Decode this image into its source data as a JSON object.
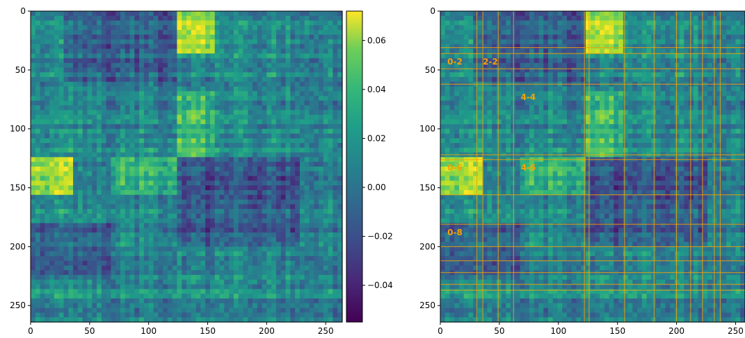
{
  "chart_data": [
    {
      "type": "heatmap",
      "title": "",
      "xlabel": "",
      "ylabel": "",
      "xlim": [
        0,
        264
      ],
      "ylim": [
        264,
        0
      ],
      "x_ticks": [
        "0",
        "50",
        "100",
        "150",
        "200",
        "250"
      ],
      "y_ticks": [
        "0",
        "50",
        "100",
        "150",
        "200",
        "250"
      ],
      "colormap": "viridis",
      "colorbar": {
        "range": [
          -0.055,
          0.072
        ],
        "ticks": [
          "0.06",
          "0.04",
          "0.02",
          "0.00",
          "−0.02",
          "−0.04"
        ]
      },
      "blocks": [
        {
          "rows": [
            0,
            36
          ],
          "cols": [
            126,
            156
          ],
          "value": 0.055
        },
        {
          "rows": [
            126,
            156
          ],
          "cols": [
            0,
            36
          ],
          "value": 0.055
        },
        {
          "rows": [
            126,
            156
          ],
          "cols": [
            70,
            126
          ],
          "value": 0.03
        },
        {
          "rows": [
            70,
            126
          ],
          "cols": [
            126,
            156
          ],
          "value": 0.03
        },
        {
          "rows": [
            126,
            200
          ],
          "cols": [
            126,
            230
          ],
          "value": -0.02
        },
        {
          "rows": [
            0,
            60
          ],
          "cols": [
            30,
            126
          ],
          "value": -0.015
        },
        {
          "rows": [
            180,
            230
          ],
          "cols": [
            0,
            70
          ],
          "value": -0.015
        }
      ]
    },
    {
      "type": "heatmap",
      "title": "",
      "xlabel": "",
      "ylabel": "",
      "xlim": [
        0,
        258
      ],
      "ylim": [
        264,
        0
      ],
      "x_ticks": [
        "0",
        "50",
        "100",
        "150",
        "200",
        "250"
      ],
      "y_ticks": [
        "0",
        "50",
        "100",
        "150",
        "200",
        "250"
      ],
      "colormap": "viridis",
      "boundary_lines": [
        31,
        36,
        49,
        62,
        122,
        126,
        156,
        181,
        200,
        212,
        222,
        232,
        237
      ],
      "boundary_color": "#f5a300",
      "annotations": [
        {
          "text": "0-2",
          "x": 6,
          "y": 43
        },
        {
          "text": "2-2",
          "x": 36,
          "y": 43
        },
        {
          "text": "4-4",
          "x": 68,
          "y": 73
        },
        {
          "text": "0-6",
          "x": 6,
          "y": 133
        },
        {
          "text": "4-6",
          "x": 68,
          "y": 133
        },
        {
          "text": "0-8",
          "x": 6,
          "y": 188
        }
      ],
      "annotation_color": "#f5a300"
    }
  ]
}
